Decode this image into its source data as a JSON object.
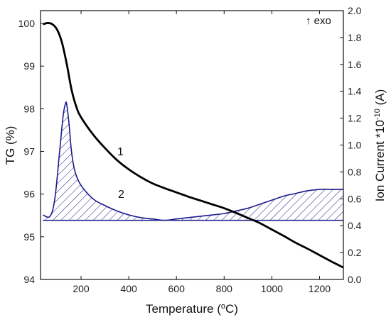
{
  "chart_data": {
    "type": "line",
    "xlabel": "Temperature (oC)",
    "xlabel_parts": {
      "prefix": "Temperature (",
      "sup": "o",
      "suffix": "C)"
    },
    "ylabel_left": "TG (%)",
    "ylabel_right_parts": {
      "prefix": "Ion Current *10",
      "sup": "-10",
      "suffix": " (A)"
    },
    "xlim": [
      30,
      1300
    ],
    "ylim_left": [
      94,
      100.3
    ],
    "ylim_right": [
      0,
      2.0
    ],
    "x_ticks": [
      200,
      400,
      600,
      800,
      1000,
      1200
    ],
    "y_left_ticks": [
      94,
      95,
      96,
      97,
      98,
      99,
      100
    ],
    "y_right_ticks": [
      0.0,
      0.2,
      0.4,
      0.6,
      0.8,
      1.0,
      1.2,
      1.4,
      1.6,
      1.8,
      2.0
    ],
    "annotation": "↑ exo",
    "baseline_right": 0.44,
    "series": [
      {
        "name": "1",
        "axis": "left",
        "color": "#000000",
        "x": [
          40,
          60,
          80,
          100,
          120,
          140,
          160,
          180,
          200,
          250,
          300,
          350,
          400,
          450,
          500,
          550,
          600,
          650,
          700,
          750,
          800,
          850,
          900,
          950,
          1000,
          1050,
          1100,
          1150,
          1200,
          1250,
          1300
        ],
        "y": [
          99.98,
          100.01,
          99.98,
          99.85,
          99.55,
          99.05,
          98.45,
          98.05,
          97.8,
          97.4,
          97.08,
          96.8,
          96.58,
          96.4,
          96.25,
          96.14,
          96.04,
          95.94,
          95.85,
          95.76,
          95.67,
          95.56,
          95.44,
          95.32,
          95.17,
          95.02,
          94.86,
          94.72,
          94.57,
          94.42,
          94.28
        ]
      },
      {
        "name": "2",
        "axis": "right",
        "color": "#1a1a8c",
        "x": [
          40,
          70,
          90,
          110,
          125,
          135,
          140,
          150,
          160,
          175,
          200,
          250,
          300,
          350,
          400,
          450,
          500,
          550,
          600,
          650,
          700,
          750,
          800,
          850,
          900,
          950,
          1000,
          1050,
          1100,
          1150,
          1200,
          1250,
          1300
        ],
        "y": [
          0.48,
          0.47,
          0.6,
          0.95,
          1.22,
          1.31,
          1.3,
          1.15,
          0.95,
          0.8,
          0.7,
          0.6,
          0.55,
          0.51,
          0.48,
          0.46,
          0.45,
          0.44,
          0.45,
          0.46,
          0.47,
          0.48,
          0.49,
          0.51,
          0.53,
          0.56,
          0.59,
          0.62,
          0.64,
          0.66,
          0.67,
          0.67,
          0.67
        ]
      }
    ]
  }
}
